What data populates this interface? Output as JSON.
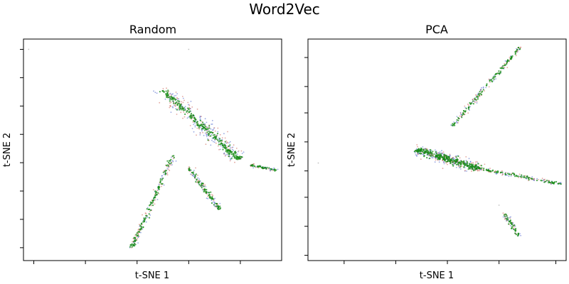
{
  "figure": {
    "suptitle": "Word2Vec"
  },
  "chart_data": [
    {
      "type": "scatter",
      "title": "Random",
      "xlabel": "t-SNE 1",
      "ylabel": "t-SNE 2",
      "xlim": [
        -8,
        42
      ],
      "ylim": [
        -43,
        43
      ],
      "xticks": [
        -6,
        4,
        14,
        24,
        34
      ],
      "yticks": [
        -38,
        -27,
        -16,
        -5,
        6,
        17,
        28,
        39
      ],
      "tick_labels_visible": false,
      "series_colors": [
        "#1f3fbf",
        "#c0392b",
        "#138a13"
      ],
      "clusters": [
        {
          "from": [
            19,
            23
          ],
          "to": [
            34,
            -4
          ],
          "width": 0.6,
          "n": 260,
          "spread": 1.6
        },
        {
          "from": [
            13,
            -38
          ],
          "to": [
            21,
            -2
          ],
          "width": 0.35,
          "n": 120,
          "spread": 0.3
        },
        {
          "from": [
            24,
            -7
          ],
          "to": [
            30,
            -23
          ],
          "width": 0.35,
          "n": 80,
          "spread": 0.4
        },
        {
          "from": [
            36,
            -6
          ],
          "to": [
            41,
            -8
          ],
          "width": 0.3,
          "n": 40,
          "spread": 0.3
        }
      ],
      "outliers": [
        [
          -7,
          39
        ],
        [
          24,
          39
        ]
      ]
    },
    {
      "type": "scatter",
      "title": "PCA",
      "xlabel": "t-SNE 1",
      "ylabel": "t-SNE 2",
      "xlim": [
        -15,
        35
      ],
      "ylim": [
        -42,
        42
      ],
      "xticks": [
        -8,
        2,
        12,
        22,
        33
      ],
      "yticks": [
        -40,
        -29,
        -18,
        -8,
        3,
        14,
        24,
        35
      ],
      "tick_labels_visible": false,
      "series_colors": [
        "#1f3fbf",
        "#c0392b",
        "#138a13"
      ],
      "clusters": [
        {
          "from": [
            6,
            0
          ],
          "to": [
            18,
            -7
          ],
          "width": 0.8,
          "n": 280,
          "spread": 1.2
        },
        {
          "from": [
            18,
            -7
          ],
          "to": [
            34,
            -13
          ],
          "width": 0.35,
          "n": 90,
          "spread": 0.4
        },
        {
          "from": [
            13,
            9
          ],
          "to": [
            26,
            39
          ],
          "width": 0.3,
          "n": 110,
          "spread": 0.3
        },
        {
          "from": [
            23,
            -24
          ],
          "to": [
            26,
            -33
          ],
          "width": 0.3,
          "n": 40,
          "spread": 0.3
        }
      ],
      "outliers": [
        [
          -13,
          -5
        ],
        [
          22,
          -21
        ]
      ]
    }
  ]
}
